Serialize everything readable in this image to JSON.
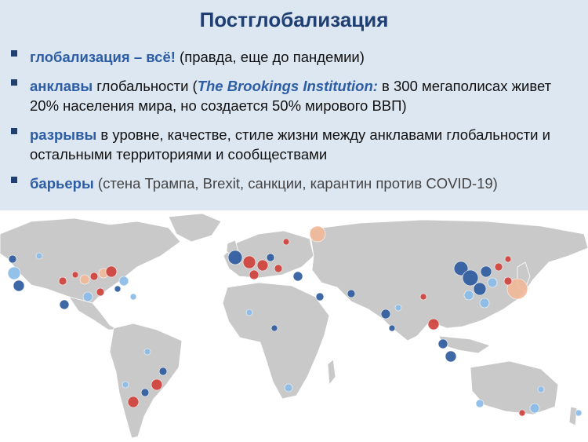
{
  "title": "Постглобализация",
  "bullets": [
    {
      "kw": "глобализация – всё!",
      "rest": " (правда, еще до пандемии)"
    },
    {
      "kw": "анклавы",
      "pre": " глобальности (",
      "source": "The Brookings Institution:",
      "rest": " в 300 мегаполисах живет 20% населения мира, но создается 50% мирового ВВП)"
    },
    {
      "kw": "разрывы",
      "rest": " в уровне, качестве, стиле жизни между анклавами глобальности и остальными территориями и сообществами"
    },
    {
      "kw": "барьеры",
      "rest": " (стена Трампа, Brexit, санкции, карантин против COVID-19)"
    }
  ],
  "map": {
    "land_color": "#c9c9c9",
    "colors": {
      "dark_blue": "#2f5d9f",
      "light_blue": "#8cbce9",
      "red": "#d1423d",
      "peach": "#f2b99a"
    }
  }
}
